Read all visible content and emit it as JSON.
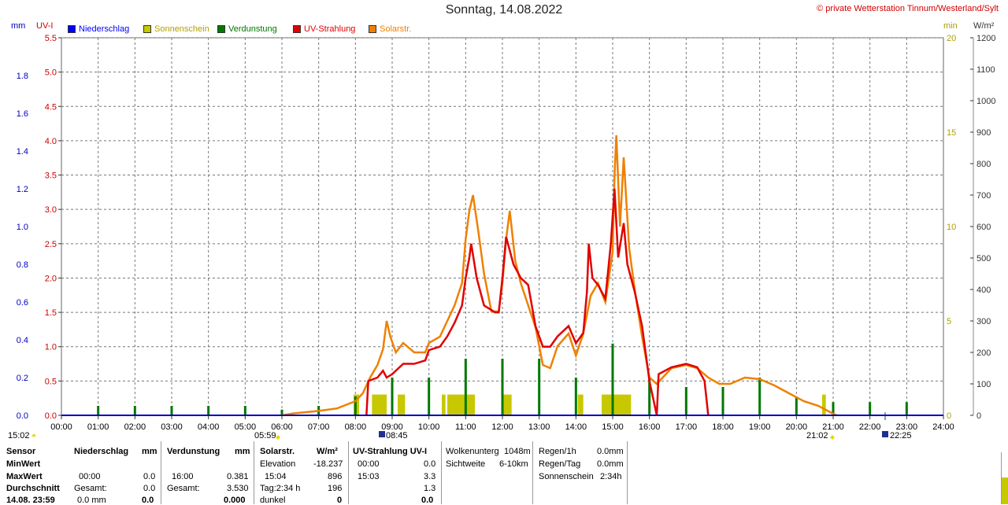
{
  "title": "Sonntag, 14.08.2022",
  "copyright": "© private Wetterstation Tinnum/Westerland/Sylt",
  "units": {
    "mm": "mm",
    "uvi": "UV-I",
    "min": "min",
    "wm2": "W/m²"
  },
  "legend": [
    {
      "label": "Niederschlag",
      "color": "#0000ff"
    },
    {
      "label": "Sonnenschein",
      "color": "#c8c800"
    },
    {
      "label": "Verdunstung",
      "color": "#007800"
    },
    {
      "label": "UV-Strahlung",
      "color": "#e00000"
    },
    {
      "label": "Solarstr.",
      "color": "#f08000"
    }
  ],
  "chart_data": {
    "type": "line",
    "x_ticks": [
      "00:00",
      "01:00",
      "02:00",
      "03:00",
      "04:00",
      "05:00",
      "06:00",
      "07:00",
      "08:00",
      "09:00",
      "10:00",
      "11:00",
      "12:00",
      "13:00",
      "14:00",
      "15:00",
      "16:00",
      "17:00",
      "18:00",
      "19:00",
      "20:00",
      "21:00",
      "22:00",
      "23:00",
      "24:00"
    ],
    "axes": {
      "mm": {
        "ticks": [
          "0.0",
          "0.2",
          "0.4",
          "0.6",
          "0.8",
          "1.0",
          "1.2",
          "1.4",
          "1.6",
          "1.8"
        ],
        "range": [
          0,
          2.0
        ]
      },
      "uvi": {
        "ticks": [
          "0.0",
          "0.5",
          "1.0",
          "1.5",
          "2.0",
          "2.5",
          "3.0",
          "3.5",
          "4.0",
          "4.5",
          "5.0",
          "5.5"
        ],
        "range": [
          0,
          5.5
        ]
      },
      "min": {
        "ticks": [
          "0",
          "5",
          "10",
          "15",
          "20"
        ],
        "range": [
          0,
          20
        ]
      },
      "wm2": {
        "ticks": [
          "0",
          "100",
          "200",
          "300",
          "400",
          "500",
          "600",
          "700",
          "800",
          "900",
          "1000",
          "1100",
          "1200"
        ],
        "range": [
          0,
          1200
        ]
      }
    },
    "series": [
      {
        "name": "Solarstr.",
        "unit": "W/m²",
        "color": "#f08000",
        "points": [
          [
            6.0,
            0
          ],
          [
            6.3,
            6
          ],
          [
            7.0,
            14
          ],
          [
            7.5,
            22
          ],
          [
            8.0,
            45
          ],
          [
            8.2,
            70
          ],
          [
            8.4,
            120
          ],
          [
            8.6,
            160
          ],
          [
            8.75,
            210
          ],
          [
            8.85,
            300
          ],
          [
            8.95,
            250
          ],
          [
            9.1,
            200
          ],
          [
            9.3,
            230
          ],
          [
            9.6,
            200
          ],
          [
            9.9,
            200
          ],
          [
            10.0,
            230
          ],
          [
            10.3,
            250
          ],
          [
            10.5,
            300
          ],
          [
            10.7,
            350
          ],
          [
            10.9,
            420
          ],
          [
            11.0,
            560
          ],
          [
            11.1,
            650
          ],
          [
            11.2,
            700
          ],
          [
            11.35,
            580
          ],
          [
            11.5,
            450
          ],
          [
            11.7,
            330
          ],
          [
            11.9,
            330
          ],
          [
            12.0,
            420
          ],
          [
            12.1,
            560
          ],
          [
            12.2,
            650
          ],
          [
            12.35,
            490
          ],
          [
            12.5,
            420
          ],
          [
            12.7,
            350
          ],
          [
            12.9,
            280
          ],
          [
            13.1,
            160
          ],
          [
            13.3,
            150
          ],
          [
            13.5,
            220
          ],
          [
            13.8,
            260
          ],
          [
            14.0,
            190
          ],
          [
            14.2,
            260
          ],
          [
            14.4,
            380
          ],
          [
            14.6,
            420
          ],
          [
            14.8,
            360
          ],
          [
            15.0,
            520
          ],
          [
            15.05,
            760
          ],
          [
            15.1,
            890
          ],
          [
            15.2,
            600
          ],
          [
            15.3,
            820
          ],
          [
            15.45,
            530
          ],
          [
            15.6,
            400
          ],
          [
            15.8,
            250
          ],
          [
            16.0,
            120
          ],
          [
            16.2,
            100
          ],
          [
            16.6,
            150
          ],
          [
            17.0,
            160
          ],
          [
            17.3,
            150
          ],
          [
            17.6,
            120
          ],
          [
            17.9,
            100
          ],
          [
            18.2,
            100
          ],
          [
            18.6,
            120
          ],
          [
            19.0,
            115
          ],
          [
            19.4,
            95
          ],
          [
            19.8,
            70
          ],
          [
            20.2,
            45
          ],
          [
            20.6,
            30
          ],
          [
            21.0,
            5
          ],
          [
            21.1,
            0
          ]
        ]
      },
      {
        "name": "UV-Strahlung",
        "unit": "UV-I",
        "color": "#e00000",
        "points": [
          [
            8.3,
            0
          ],
          [
            8.35,
            0.5
          ],
          [
            8.6,
            0.55
          ],
          [
            8.75,
            0.65
          ],
          [
            8.85,
            0.55
          ],
          [
            9.0,
            0.6
          ],
          [
            9.3,
            0.75
          ],
          [
            9.6,
            0.75
          ],
          [
            9.9,
            0.8
          ],
          [
            10.0,
            0.95
          ],
          [
            10.3,
            1.0
          ],
          [
            10.5,
            1.15
          ],
          [
            10.7,
            1.35
          ],
          [
            10.9,
            1.6
          ],
          [
            11.0,
            2.0
          ],
          [
            11.1,
            2.3
          ],
          [
            11.15,
            2.5
          ],
          [
            11.3,
            2.0
          ],
          [
            11.5,
            1.6
          ],
          [
            11.8,
            1.5
          ],
          [
            11.9,
            1.5
          ],
          [
            12.0,
            2.0
          ],
          [
            12.1,
            2.6
          ],
          [
            12.3,
            2.2
          ],
          [
            12.5,
            2.0
          ],
          [
            12.7,
            1.9
          ],
          [
            12.9,
            1.3
          ],
          [
            13.1,
            1.0
          ],
          [
            13.3,
            1.0
          ],
          [
            13.5,
            1.15
          ],
          [
            13.8,
            1.3
          ],
          [
            14.0,
            1.05
          ],
          [
            14.2,
            1.2
          ],
          [
            14.3,
            1.8
          ],
          [
            14.35,
            2.5
          ],
          [
            14.45,
            2.0
          ],
          [
            14.6,
            1.9
          ],
          [
            14.8,
            1.7
          ],
          [
            14.95,
            2.5
          ],
          [
            15.05,
            3.3
          ],
          [
            15.15,
            2.3
          ],
          [
            15.3,
            2.8
          ],
          [
            15.4,
            2.2
          ],
          [
            15.6,
            1.8
          ],
          [
            15.8,
            1.3
          ],
          [
            16.0,
            0.5
          ],
          [
            16.2,
            0.0
          ],
          [
            16.25,
            0.6
          ],
          [
            16.6,
            0.7
          ],
          [
            17.0,
            0.75
          ],
          [
            17.3,
            0.7
          ],
          [
            17.5,
            0.5
          ],
          [
            17.6,
            0.0
          ]
        ]
      }
    ],
    "bars_evaporation_minmax": "green spikes hourly",
    "sunshine_blocks": [
      [
        7.95,
        8.1
      ],
      [
        8.45,
        8.85
      ],
      [
        9.15,
        9.35
      ],
      [
        10.35,
        10.45
      ],
      [
        10.5,
        11.25
      ],
      [
        12.0,
        12.25
      ],
      [
        14.05,
        14.2
      ],
      [
        14.7,
        15.5
      ],
      [
        20.7,
        20.8
      ]
    ],
    "evaporation_spikes": [
      [
        1.0,
        0.05
      ],
      [
        2.0,
        0.05
      ],
      [
        3.0,
        0.05
      ],
      [
        4.0,
        0.05
      ],
      [
        5.0,
        0.05
      ],
      [
        6.0,
        0.03
      ],
      [
        7.0,
        0.05
      ],
      [
        8.0,
        0.1
      ],
      [
        9.0,
        0.2
      ],
      [
        10.0,
        0.2
      ],
      [
        11.0,
        0.3
      ],
      [
        12.0,
        0.3
      ],
      [
        13.0,
        0.3
      ],
      [
        14.0,
        0.2
      ],
      [
        15.0,
        0.38
      ],
      [
        16.0,
        0.2
      ],
      [
        17.0,
        0.15
      ],
      [
        18.0,
        0.15
      ],
      [
        19.0,
        0.2
      ],
      [
        20.0,
        0.1
      ],
      [
        21.0,
        0.07
      ],
      [
        22.0,
        0.07
      ],
      [
        23.0,
        0.07
      ]
    ],
    "sunrise": "05:59",
    "sunset": "21:02",
    "markers": [
      "15:02",
      "08:45",
      "22:25"
    ]
  },
  "table": {
    "sensor": "Sensor",
    "minwert": "MinWert",
    "maxwert": "MaxWert",
    "durchschnitt": "Durchschnitt",
    "datetime": "14.08. 23:59",
    "niederschlag": {
      "head": "Niederschlag",
      "unit": "mm",
      "maxtime": "00:00",
      "maxval": "0.0",
      "gesamt": "Gesamt:",
      "gesamtval": "0.0",
      "avg": "0.0 mm",
      "avgval": "0.0"
    },
    "verdunstung": {
      "head": "Verdunstung",
      "unit": "mm",
      "maxtime": "16:00",
      "maxval": "0.381",
      "gesamt": "Gesamt:",
      "gesamtval": "3.530",
      "avgval": "0.000"
    },
    "solar": {
      "head": "Solarstr.",
      "unit": "W/m²",
      "elev": "Elevation",
      "elevval": "-18.237",
      "maxtime": "15:04",
      "maxval": "896",
      "tag": "Tag:2:34 h",
      "tagval": "196",
      "dunkel": "dunkel",
      "dunkelval": "0"
    },
    "uv": {
      "head": "UV-Strahlung UV-I",
      "mintime": "00:00",
      "minval": "0.0",
      "maxtime": "15:03",
      "maxval": "3.3",
      "avg": "1.3",
      "last": "0.0"
    },
    "wolken": {
      "l1": "Wolkenunterg",
      "v1": "1048m",
      "l2": "Sichtweite",
      "v2": "6-10km"
    },
    "regen": {
      "l1": "Regen/1h",
      "v1": "0.0mm",
      "l2": "Regen/Tag",
      "v2": "0.0mm",
      "l3": "Sonnenschein",
      "v3": "2:34h"
    }
  }
}
